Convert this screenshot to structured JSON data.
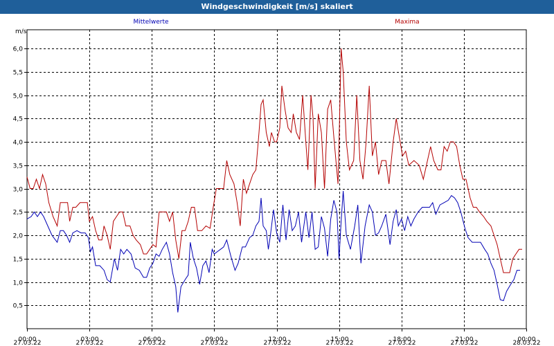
{
  "window": {
    "title": "Windgeschwindigkeit [m/s] skaliert"
  },
  "colors": {
    "mittel": "#0000b4",
    "max": "#b40000",
    "titlebar": "#1f5f9a"
  },
  "chart_data": {
    "type": "line",
    "title": "Windgeschwindigkeit [m/s] skaliert",
    "ylabel": "m/s",
    "ylim": [
      0,
      6.4
    ],
    "xlim": [
      0,
      24
    ],
    "y_ticks": [
      "0,5",
      "1,0",
      "1,5",
      "2,0",
      "2,5",
      "3,0",
      "3,5",
      "4,0",
      "4,5",
      "5,0",
      "5,5",
      "6,0"
    ],
    "y_tick_values": [
      0.5,
      1.0,
      1.5,
      2.0,
      2.5,
      3.0,
      3.5,
      4.0,
      4.5,
      5.0,
      5.5,
      6.0
    ],
    "x_ticks": [
      {
        "time": "00:00",
        "date": "27.03.22",
        "h": 0
      },
      {
        "time": "03:00",
        "date": "27.03.22",
        "h": 3
      },
      {
        "time": "06:00",
        "date": "27.03.22",
        "h": 6
      },
      {
        "time": "09:00",
        "date": "27.03.22",
        "h": 9
      },
      {
        "time": "12:00",
        "date": "27.03.22",
        "h": 12
      },
      {
        "time": "15:00",
        "date": "27.03.22",
        "h": 15
      },
      {
        "time": "18:00",
        "date": "27.03.22",
        "h": 18
      },
      {
        "time": "21:00",
        "date": "27.03.22",
        "h": 21
      },
      {
        "time": "00:00",
        "date": "28.03.22",
        "h": 24
      }
    ],
    "grid": true,
    "legend_position": "top",
    "series": [
      {
        "name": "Mittelwerte",
        "color": "#0000b4",
        "points": [
          [
            0,
            2.35
          ],
          [
            0.2,
            2.4
          ],
          [
            0.35,
            2.5
          ],
          [
            0.5,
            2.4
          ],
          [
            0.65,
            2.5
          ],
          [
            0.8,
            2.4
          ],
          [
            1.0,
            2.2
          ],
          [
            1.2,
            2.0
          ],
          [
            1.45,
            1.85
          ],
          [
            1.6,
            2.1
          ],
          [
            1.75,
            2.1
          ],
          [
            1.9,
            2.0
          ],
          [
            2.05,
            1.85
          ],
          [
            2.2,
            2.05
          ],
          [
            2.4,
            2.1
          ],
          [
            2.6,
            2.05
          ],
          [
            2.8,
            2.05
          ],
          [
            2.95,
            1.95
          ],
          [
            3.05,
            1.65
          ],
          [
            3.15,
            1.75
          ],
          [
            3.3,
            1.35
          ],
          [
            3.5,
            1.35
          ],
          [
            3.7,
            1.25
          ],
          [
            3.85,
            1.05
          ],
          [
            4.0,
            1.0
          ],
          [
            4.2,
            1.5
          ],
          [
            4.35,
            1.25
          ],
          [
            4.5,
            1.7
          ],
          [
            4.65,
            1.6
          ],
          [
            4.8,
            1.7
          ],
          [
            5.0,
            1.6
          ],
          [
            5.2,
            1.3
          ],
          [
            5.4,
            1.25
          ],
          [
            5.6,
            1.1
          ],
          [
            5.75,
            1.1
          ],
          [
            5.9,
            1.3
          ],
          [
            6.05,
            1.4
          ],
          [
            6.2,
            1.6
          ],
          [
            6.35,
            1.55
          ],
          [
            6.5,
            1.7
          ],
          [
            6.7,
            1.85
          ],
          [
            6.85,
            1.6
          ],
          [
            7.0,
            1.2
          ],
          [
            7.15,
            0.9
          ],
          [
            7.25,
            0.35
          ],
          [
            7.4,
            0.9
          ],
          [
            7.6,
            1.05
          ],
          [
            7.75,
            1.15
          ],
          [
            7.85,
            1.85
          ],
          [
            8.0,
            1.5
          ],
          [
            8.15,
            1.3
          ],
          [
            8.3,
            0.95
          ],
          [
            8.45,
            1.35
          ],
          [
            8.6,
            1.45
          ],
          [
            8.75,
            1.2
          ],
          [
            8.9,
            1.7
          ],
          [
            9.0,
            1.6
          ],
          [
            9.15,
            1.65
          ],
          [
            9.3,
            1.7
          ],
          [
            9.45,
            1.75
          ],
          [
            9.6,
            1.9
          ],
          [
            9.8,
            1.55
          ],
          [
            10.0,
            1.25
          ],
          [
            10.15,
            1.4
          ],
          [
            10.35,
            1.75
          ],
          [
            10.5,
            1.75
          ],
          [
            10.7,
            1.95
          ],
          [
            10.85,
            2.0
          ],
          [
            11.0,
            2.2
          ],
          [
            11.15,
            2.3
          ],
          [
            11.25,
            2.8
          ],
          [
            11.35,
            2.2
          ],
          [
            11.5,
            2.1
          ],
          [
            11.6,
            1.7
          ],
          [
            11.7,
            2.0
          ],
          [
            11.85,
            2.55
          ],
          [
            12.0,
            2.05
          ],
          [
            12.15,
            1.85
          ],
          [
            12.3,
            2.65
          ],
          [
            12.45,
            1.9
          ],
          [
            12.6,
            2.55
          ],
          [
            12.75,
            2.1
          ],
          [
            12.9,
            2.2
          ],
          [
            13.05,
            2.5
          ],
          [
            13.2,
            1.85
          ],
          [
            13.4,
            2.5
          ],
          [
            13.55,
            1.95
          ],
          [
            13.7,
            2.5
          ],
          [
            13.85,
            1.7
          ],
          [
            14.0,
            1.75
          ],
          [
            14.15,
            2.4
          ],
          [
            14.3,
            2.15
          ],
          [
            14.45,
            1.55
          ],
          [
            14.6,
            2.35
          ],
          [
            14.75,
            2.75
          ],
          [
            14.9,
            2.5
          ],
          [
            15.0,
            1.5
          ],
          [
            15.1,
            2.3
          ],
          [
            15.2,
            2.95
          ],
          [
            15.35,
            2.0
          ],
          [
            15.55,
            1.7
          ],
          [
            15.75,
            2.2
          ],
          [
            15.9,
            2.65
          ],
          [
            16.05,
            1.4
          ],
          [
            16.25,
            2.2
          ],
          [
            16.45,
            2.65
          ],
          [
            16.6,
            2.5
          ],
          [
            16.75,
            2.0
          ],
          [
            16.9,
            2.05
          ],
          [
            17.05,
            2.2
          ],
          [
            17.25,
            2.45
          ],
          [
            17.45,
            1.8
          ],
          [
            17.6,
            2.3
          ],
          [
            17.75,
            2.55
          ],
          [
            17.85,
            2.2
          ],
          [
            18.0,
            2.35
          ],
          [
            18.15,
            2.1
          ],
          [
            18.3,
            2.4
          ],
          [
            18.45,
            2.2
          ],
          [
            18.6,
            2.35
          ],
          [
            18.8,
            2.5
          ],
          [
            19.0,
            2.6
          ],
          [
            19.2,
            2.6
          ],
          [
            19.35,
            2.6
          ],
          [
            19.5,
            2.7
          ],
          [
            19.65,
            2.45
          ],
          [
            19.85,
            2.65
          ],
          [
            20.05,
            2.7
          ],
          [
            20.25,
            2.75
          ],
          [
            20.4,
            2.85
          ],
          [
            20.55,
            2.8
          ],
          [
            20.7,
            2.7
          ],
          [
            20.85,
            2.5
          ],
          [
            21.05,
            2.15
          ],
          [
            21.2,
            1.95
          ],
          [
            21.4,
            1.85
          ],
          [
            21.6,
            1.85
          ],
          [
            21.8,
            1.85
          ],
          [
            22.0,
            1.7
          ],
          [
            22.15,
            1.6
          ],
          [
            22.3,
            1.4
          ],
          [
            22.45,
            1.25
          ],
          [
            22.6,
            0.95
          ],
          [
            22.75,
            0.62
          ],
          [
            22.9,
            0.6
          ],
          [
            23.05,
            0.8
          ],
          [
            23.25,
            0.95
          ],
          [
            23.4,
            1.05
          ],
          [
            23.55,
            1.25
          ],
          [
            23.7,
            1.25
          ]
        ]
      },
      {
        "name": "Maxima",
        "color": "#b40000",
        "points": [
          [
            0,
            3.25
          ],
          [
            0.15,
            3.0
          ],
          [
            0.3,
            3.0
          ],
          [
            0.45,
            3.2
          ],
          [
            0.6,
            3.0
          ],
          [
            0.75,
            3.3
          ],
          [
            0.9,
            3.1
          ],
          [
            1.05,
            2.7
          ],
          [
            1.25,
            2.4
          ],
          [
            1.45,
            2.2
          ],
          [
            1.6,
            2.7
          ],
          [
            1.8,
            2.7
          ],
          [
            1.95,
            2.7
          ],
          [
            2.05,
            2.3
          ],
          [
            2.2,
            2.6
          ],
          [
            2.35,
            2.6
          ],
          [
            2.55,
            2.7
          ],
          [
            2.75,
            2.7
          ],
          [
            2.9,
            2.7
          ],
          [
            3.0,
            2.3
          ],
          [
            3.15,
            2.4
          ],
          [
            3.3,
            2.1
          ],
          [
            3.45,
            1.9
          ],
          [
            3.6,
            1.9
          ],
          [
            3.7,
            2.2
          ],
          [
            3.85,
            2.0
          ],
          [
            4.0,
            1.7
          ],
          [
            4.15,
            2.3
          ],
          [
            4.3,
            2.4
          ],
          [
            4.45,
            2.5
          ],
          [
            4.6,
            2.5
          ],
          [
            4.75,
            2.2
          ],
          [
            4.95,
            2.2
          ],
          [
            5.1,
            2.0
          ],
          [
            5.25,
            1.9
          ],
          [
            5.45,
            1.8
          ],
          [
            5.6,
            1.6
          ],
          [
            5.75,
            1.6
          ],
          [
            5.9,
            1.7
          ],
          [
            6.05,
            1.8
          ],
          [
            6.2,
            1.75
          ],
          [
            6.35,
            2.5
          ],
          [
            6.55,
            2.5
          ],
          [
            6.7,
            2.5
          ],
          [
            6.85,
            2.3
          ],
          [
            7.0,
            2.5
          ],
          [
            7.15,
            1.9
          ],
          [
            7.3,
            1.5
          ],
          [
            7.45,
            2.1
          ],
          [
            7.6,
            2.1
          ],
          [
            7.75,
            2.3
          ],
          [
            7.9,
            2.6
          ],
          [
            8.05,
            2.6
          ],
          [
            8.2,
            2.1
          ],
          [
            8.4,
            2.1
          ],
          [
            8.6,
            2.2
          ],
          [
            8.8,
            2.15
          ],
          [
            8.95,
            2.6
          ],
          [
            9.1,
            3.0
          ],
          [
            9.3,
            3.0
          ],
          [
            9.45,
            3.0
          ],
          [
            9.6,
            3.6
          ],
          [
            9.75,
            3.3
          ],
          [
            9.95,
            3.1
          ],
          [
            10.1,
            2.7
          ],
          [
            10.25,
            2.2
          ],
          [
            10.4,
            3.2
          ],
          [
            10.55,
            2.9
          ],
          [
            10.7,
            3.1
          ],
          [
            10.85,
            3.3
          ],
          [
            11.0,
            3.4
          ],
          [
            11.15,
            4.2
          ],
          [
            11.25,
            4.8
          ],
          [
            11.35,
            4.9
          ],
          [
            11.5,
            4.2
          ],
          [
            11.65,
            3.9
          ],
          [
            11.75,
            4.2
          ],
          [
            11.9,
            4.0
          ],
          [
            12.0,
            4.0
          ],
          [
            12.15,
            4.3
          ],
          [
            12.25,
            5.2
          ],
          [
            12.4,
            4.7
          ],
          [
            12.55,
            4.3
          ],
          [
            12.7,
            4.2
          ],
          [
            12.8,
            4.6
          ],
          [
            12.95,
            4.2
          ],
          [
            13.1,
            4.05
          ],
          [
            13.25,
            5.0
          ],
          [
            13.4,
            4.0
          ],
          [
            13.5,
            3.4
          ],
          [
            13.65,
            5.0
          ],
          [
            13.75,
            4.5
          ],
          [
            13.85,
            3.0
          ],
          [
            14.0,
            4.6
          ],
          [
            14.15,
            4.2
          ],
          [
            14.3,
            3.0
          ],
          [
            14.45,
            4.7
          ],
          [
            14.6,
            4.9
          ],
          [
            14.75,
            4.1
          ],
          [
            14.95,
            3.1
          ],
          [
            15.0,
            4.0
          ],
          [
            15.1,
            6.0
          ],
          [
            15.2,
            5.5
          ],
          [
            15.35,
            4.0
          ],
          [
            15.5,
            3.4
          ],
          [
            15.7,
            3.6
          ],
          [
            15.85,
            5.0
          ],
          [
            16.0,
            3.6
          ],
          [
            16.15,
            3.2
          ],
          [
            16.3,
            4.0
          ],
          [
            16.45,
            5.2
          ],
          [
            16.6,
            3.7
          ],
          [
            16.75,
            4.0
          ],
          [
            16.9,
            3.3
          ],
          [
            17.05,
            3.6
          ],
          [
            17.25,
            3.6
          ],
          [
            17.4,
            3.1
          ],
          [
            17.6,
            4.0
          ],
          [
            17.75,
            4.5
          ],
          [
            17.9,
            4.1
          ],
          [
            18.05,
            3.7
          ],
          [
            18.2,
            3.8
          ],
          [
            18.35,
            3.5
          ],
          [
            18.6,
            3.6
          ],
          [
            18.85,
            3.5
          ],
          [
            19.05,
            3.2
          ],
          [
            19.25,
            3.6
          ],
          [
            19.4,
            3.9
          ],
          [
            19.55,
            3.6
          ],
          [
            19.75,
            3.4
          ],
          [
            19.9,
            3.4
          ],
          [
            20.05,
            3.9
          ],
          [
            20.2,
            3.8
          ],
          [
            20.35,
            4.0
          ],
          [
            20.5,
            4.0
          ],
          [
            20.65,
            3.9
          ],
          [
            20.8,
            3.5
          ],
          [
            20.95,
            3.2
          ],
          [
            21.1,
            3.2
          ],
          [
            21.3,
            2.8
          ],
          [
            21.45,
            2.6
          ],
          [
            21.6,
            2.6
          ],
          [
            21.75,
            2.5
          ],
          [
            21.95,
            2.4
          ],
          [
            22.1,
            2.3
          ],
          [
            22.3,
            2.2
          ],
          [
            22.45,
            2.0
          ],
          [
            22.6,
            1.8
          ],
          [
            22.75,
            1.5
          ],
          [
            22.9,
            1.2
          ],
          [
            23.05,
            1.2
          ],
          [
            23.2,
            1.2
          ],
          [
            23.35,
            1.5
          ],
          [
            23.5,
            1.6
          ],
          [
            23.65,
            1.7
          ],
          [
            23.8,
            1.7
          ]
        ]
      }
    ]
  }
}
